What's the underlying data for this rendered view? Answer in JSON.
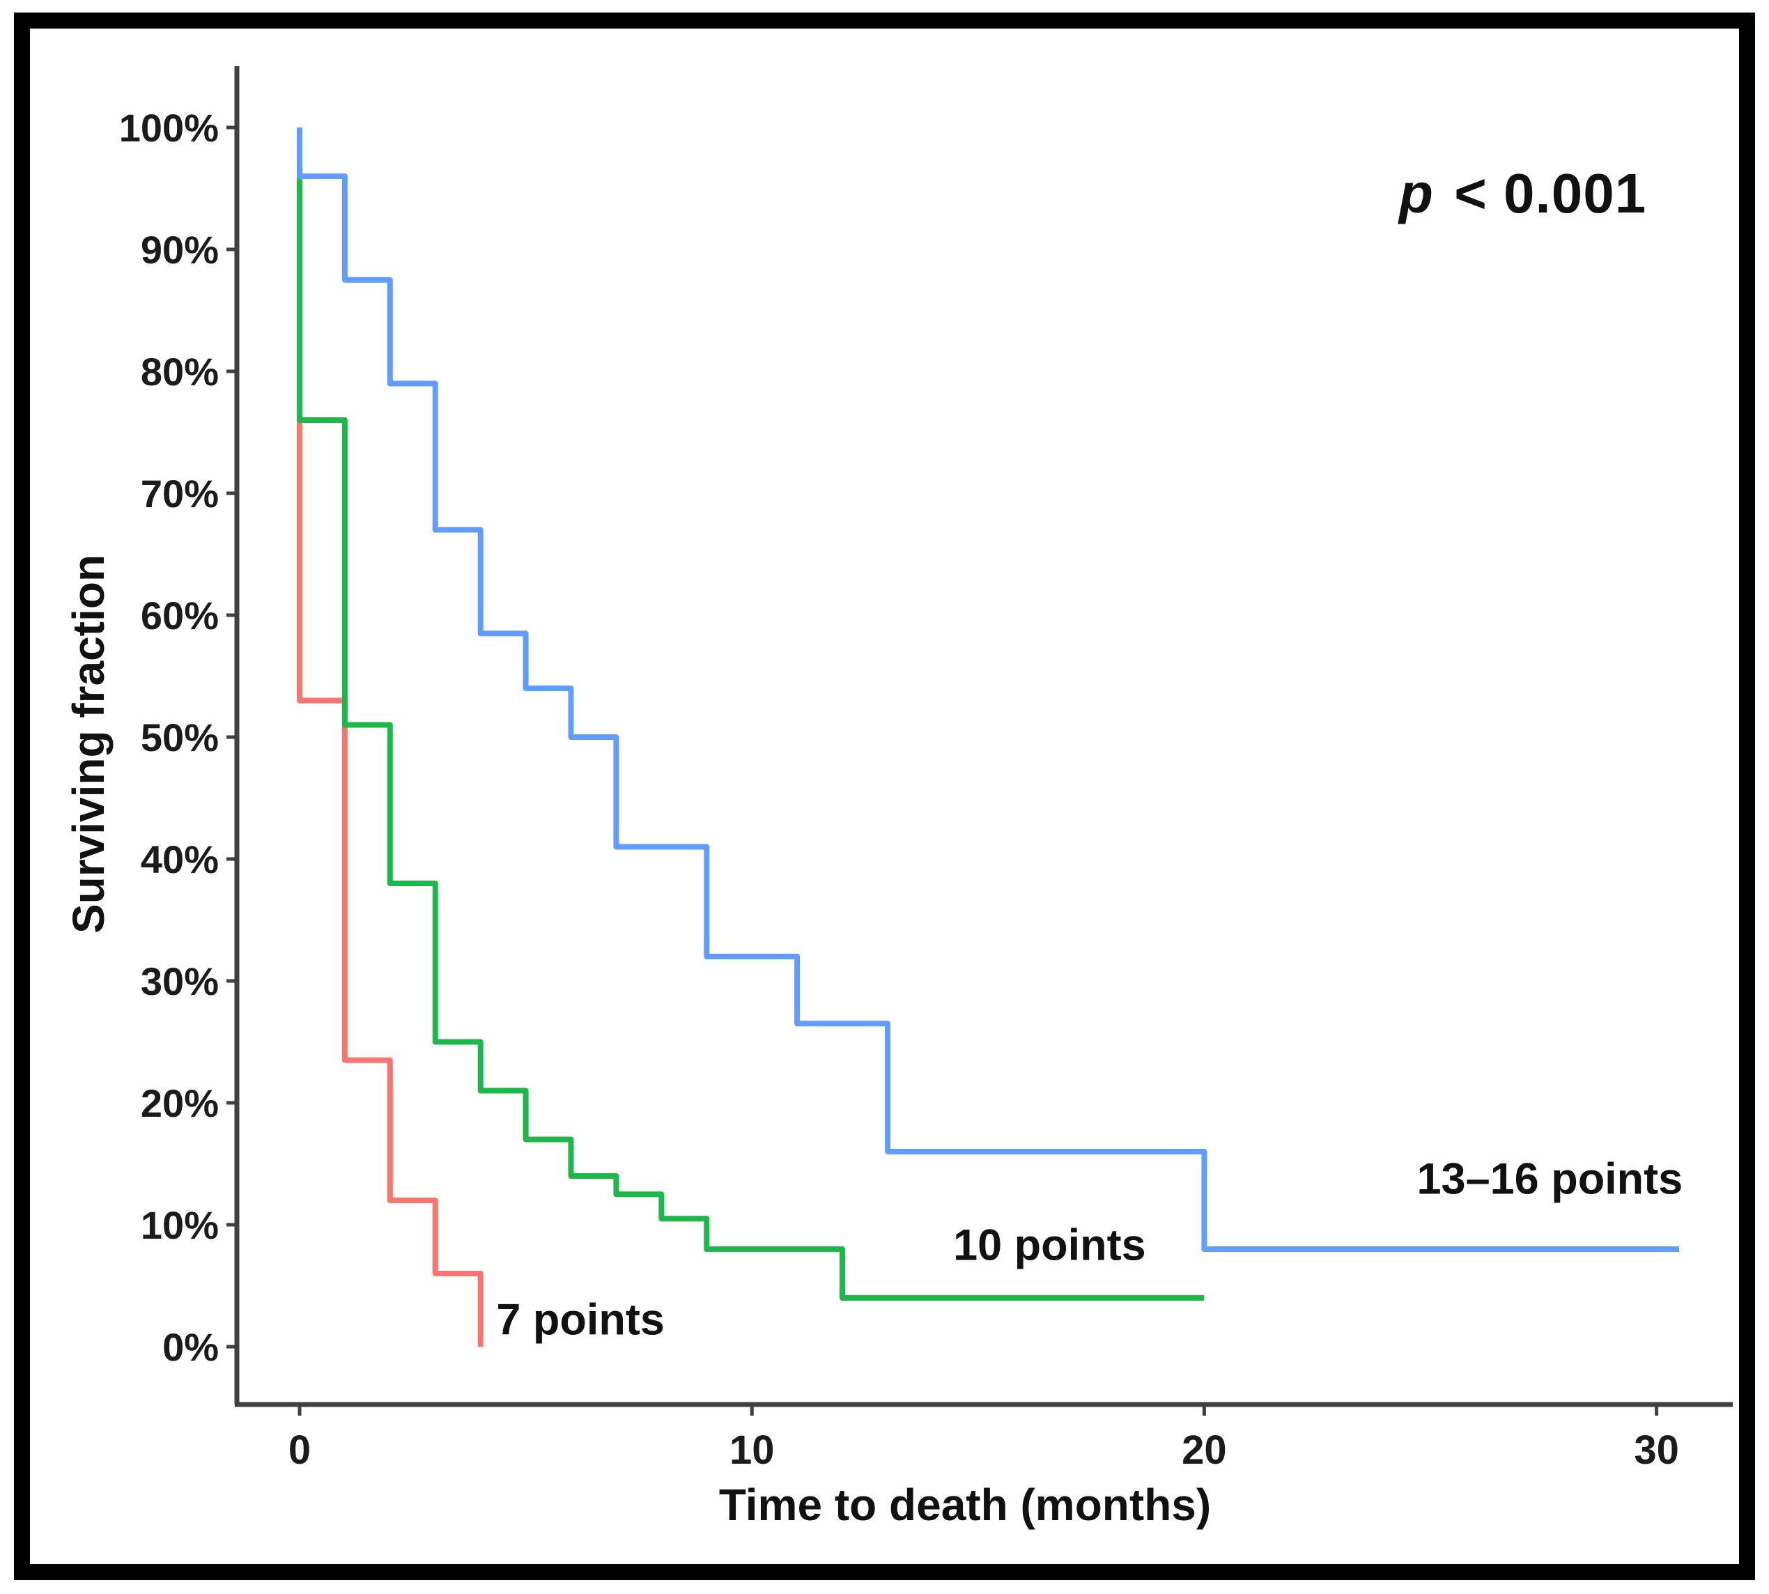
{
  "figure": {
    "background": "#ffffff",
    "border_color": "#000000",
    "p_annotation": {
      "italic": "p",
      "rest": " < 0.001",
      "full": "p < 0.001"
    }
  },
  "chart_data": {
    "type": "line",
    "variant": "kaplan_meier_step",
    "title": "",
    "xlabel": "Time to death (months)",
    "ylabel": "Surviving fraction",
    "x_ticks": [
      0,
      10,
      20,
      30
    ],
    "x_tick_labels": [
      "0",
      "10",
      "20",
      "30"
    ],
    "y_ticks": [
      0,
      10,
      20,
      30,
      40,
      50,
      60,
      70,
      80,
      90,
      100
    ],
    "y_tick_labels": [
      "0%",
      "10%",
      "20%",
      "30%",
      "40%",
      "50%",
      "60%",
      "70%",
      "80%",
      "90%",
      "100%"
    ],
    "xlim": [
      0,
      31
    ],
    "ylim": [
      0,
      100
    ],
    "grid": false,
    "legend_position": "labels-at-curve-ends",
    "axis_color": "#3f3f3f",
    "tick_label_color": "#1b1b1b",
    "series": [
      {
        "name": "7 points",
        "color": "#F8766D",
        "points": [
          [
            0,
            100
          ],
          [
            0,
            53
          ],
          [
            1,
            53
          ],
          [
            1,
            23.5
          ],
          [
            2,
            23.5
          ],
          [
            2,
            12
          ],
          [
            3,
            12
          ],
          [
            3,
            6
          ],
          [
            4,
            6
          ],
          [
            4,
            0
          ]
        ],
        "label_anchor": {
          "t": 4.35,
          "v": 2.2
        }
      },
      {
        "name": "10 points",
        "color": "#1CB84A",
        "points": [
          [
            0,
            100
          ],
          [
            0,
            76
          ],
          [
            1,
            76
          ],
          [
            1,
            51
          ],
          [
            2,
            51
          ],
          [
            2,
            38
          ],
          [
            3,
            38
          ],
          [
            3,
            25
          ],
          [
            4,
            25
          ],
          [
            4,
            21
          ],
          [
            5,
            21
          ],
          [
            5,
            17
          ],
          [
            6,
            17
          ],
          [
            6,
            14
          ],
          [
            7,
            14
          ],
          [
            7,
            12.5
          ],
          [
            8,
            12.5
          ],
          [
            8,
            10.5
          ],
          [
            9,
            10.5
          ],
          [
            9,
            8
          ],
          [
            12,
            8
          ],
          [
            12,
            4
          ],
          [
            20,
            4
          ]
        ],
        "label_anchor": {
          "t": 14.45,
          "v": 8.3
        }
      },
      {
        "name": "13–16 points",
        "color": "#619CFF",
        "points": [
          [
            0,
            100
          ],
          [
            0,
            96
          ],
          [
            1,
            96
          ],
          [
            1,
            87.5
          ],
          [
            2,
            87.5
          ],
          [
            2,
            79
          ],
          [
            3,
            79
          ],
          [
            3,
            67
          ],
          [
            4,
            67
          ],
          [
            4,
            58.5
          ],
          [
            5,
            58.5
          ],
          [
            5,
            54
          ],
          [
            6,
            54
          ],
          [
            6,
            50
          ],
          [
            7,
            50
          ],
          [
            7,
            41
          ],
          [
            9,
            41
          ],
          [
            9,
            32
          ],
          [
            11,
            32
          ],
          [
            11,
            26.5
          ],
          [
            13,
            26.5
          ],
          [
            13,
            16
          ],
          [
            20,
            16
          ],
          [
            20,
            8
          ],
          [
            30.5,
            8
          ]
        ],
        "label_anchor": {
          "t": 24.7,
          "v": 13.7
        }
      }
    ]
  }
}
